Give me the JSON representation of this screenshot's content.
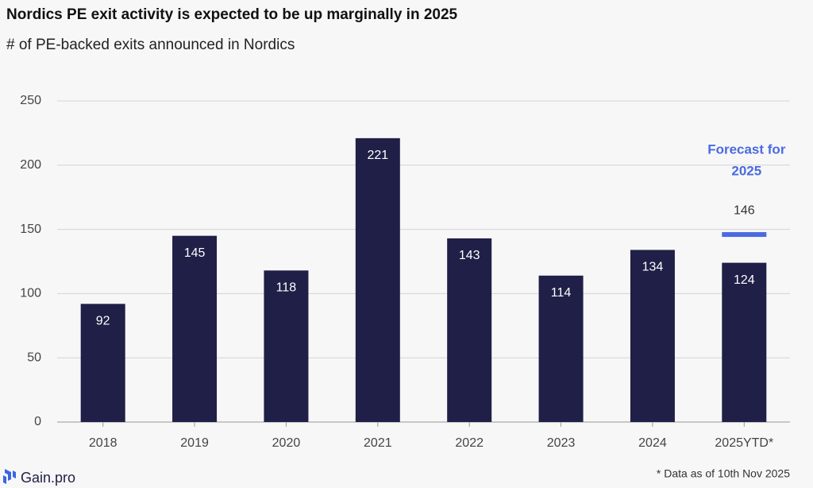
{
  "chart_data": {
    "type": "bar",
    "title": "Nordics PE exit activity is expected to be up marginally in 2025",
    "subtitle": "# of PE-backed exits announced in Nordics",
    "categories": [
      "2018",
      "2019",
      "2020",
      "2021",
      "2022",
      "2023",
      "2024",
      "2025YTD*"
    ],
    "values": [
      92,
      145,
      118,
      221,
      143,
      114,
      134,
      124
    ],
    "color": "#1f1f47",
    "ylim": [
      0,
      250
    ],
    "yticks": [
      0,
      50,
      100,
      150,
      200,
      250
    ],
    "grid": true,
    "forecast": {
      "label": [
        "Forecast for",
        "2025"
      ],
      "value": 146,
      "color": "#4a6ae0"
    },
    "footnote": "* Data as of 10th Nov 2025",
    "brand": "Gain.pro"
  }
}
